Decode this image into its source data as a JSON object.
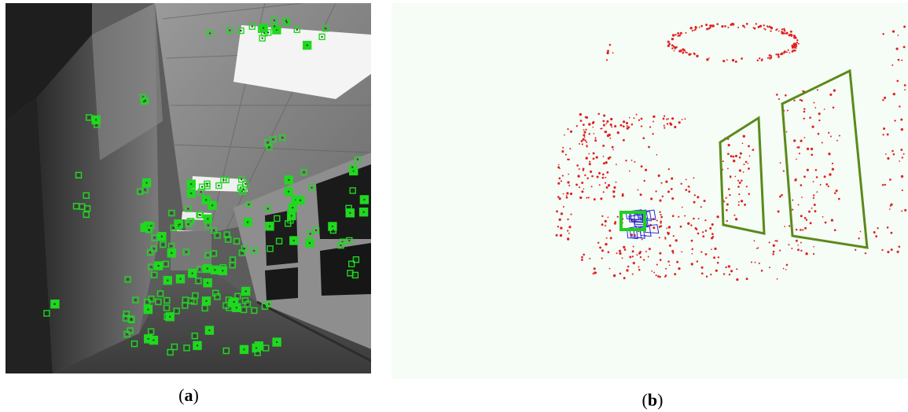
{
  "figure": {
    "panel_a": {
      "label_open": "(",
      "label_letter": "a",
      "label_close": ")",
      "description": "",
      "feature_color": "#21d821"
    },
    "panel_b": {
      "label_open": "(",
      "label_letter": "b",
      "label_close": ")",
      "description": "",
      "point_color": "#e02020",
      "plane_color": "#5a8a1a",
      "camera_color": "#2a2ad0",
      "current_camera_color": "#20d020"
    }
  }
}
